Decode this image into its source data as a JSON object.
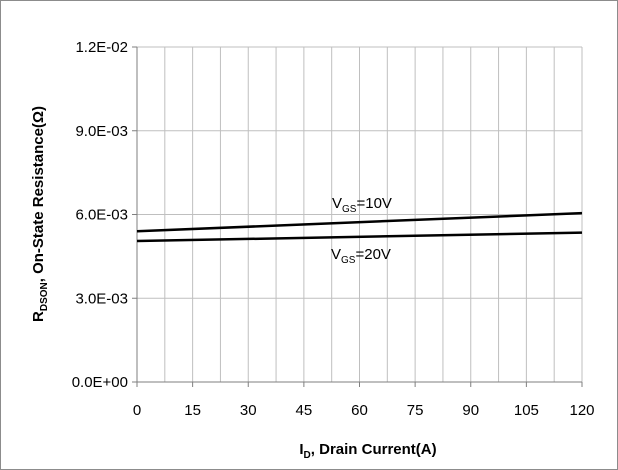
{
  "chart_data": {
    "type": "line",
    "title": "",
    "x": [
      0,
      120
    ],
    "xlim": [
      0,
      120
    ],
    "xticks": [
      0,
      15,
      30,
      45,
      60,
      75,
      90,
      105,
      120
    ],
    "xtick_labels": [
      "0",
      "15",
      "30",
      "45",
      "60",
      "75",
      "90",
      "105",
      "120"
    ],
    "ylim": [
      0,
      0.012
    ],
    "yticks": [
      0,
      0.003,
      0.006,
      0.009,
      0.012
    ],
    "ytick_labels": [
      "0.0E+00",
      "3.0E-03",
      "6.0E-03",
      "9.0E-03",
      "1.2E-02"
    ],
    "xlabel": {
      "main": "I",
      "sub": "D",
      "rest": ", Drain Current(A)"
    },
    "ylabel": {
      "main": "R",
      "sub": "DSON",
      "rest": ", On-State Resistance(Ω)"
    },
    "grid": {
      "vertical_every": 7.5,
      "horizontal": true
    },
    "series": [
      {
        "label": {
          "main": "V",
          "sub": "GS",
          "rest": "=10V"
        },
        "values": [
          0.0054,
          0.00605
        ],
        "color": "#000000"
      },
      {
        "label": {
          "main": "V",
          "sub": "GS",
          "rest": "=20V"
        },
        "values": [
          0.00505,
          0.00535
        ],
        "color": "#000000"
      }
    ]
  },
  "colors": {
    "grid": "#bfbfbf",
    "axis": "#7f7f7f",
    "line": "#000000",
    "border": "#8c8c8c"
  }
}
